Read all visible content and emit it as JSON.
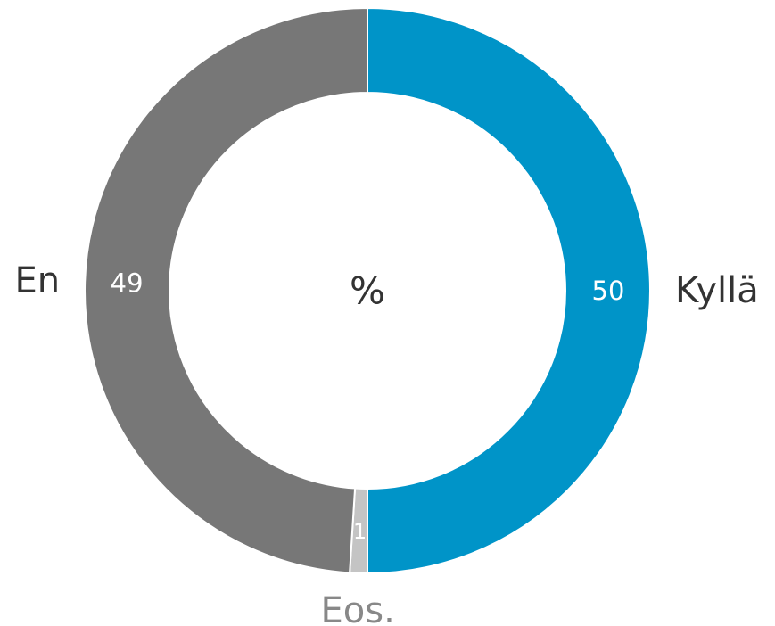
{
  "chart_data": {
    "type": "donut",
    "center_label": "%",
    "categories": [
      "Kyllä",
      "Eos.",
      "En"
    ],
    "values": [
      50,
      1,
      49
    ],
    "colors": [
      "#0094c8",
      "#c4c4c4",
      "#777777"
    ]
  }
}
